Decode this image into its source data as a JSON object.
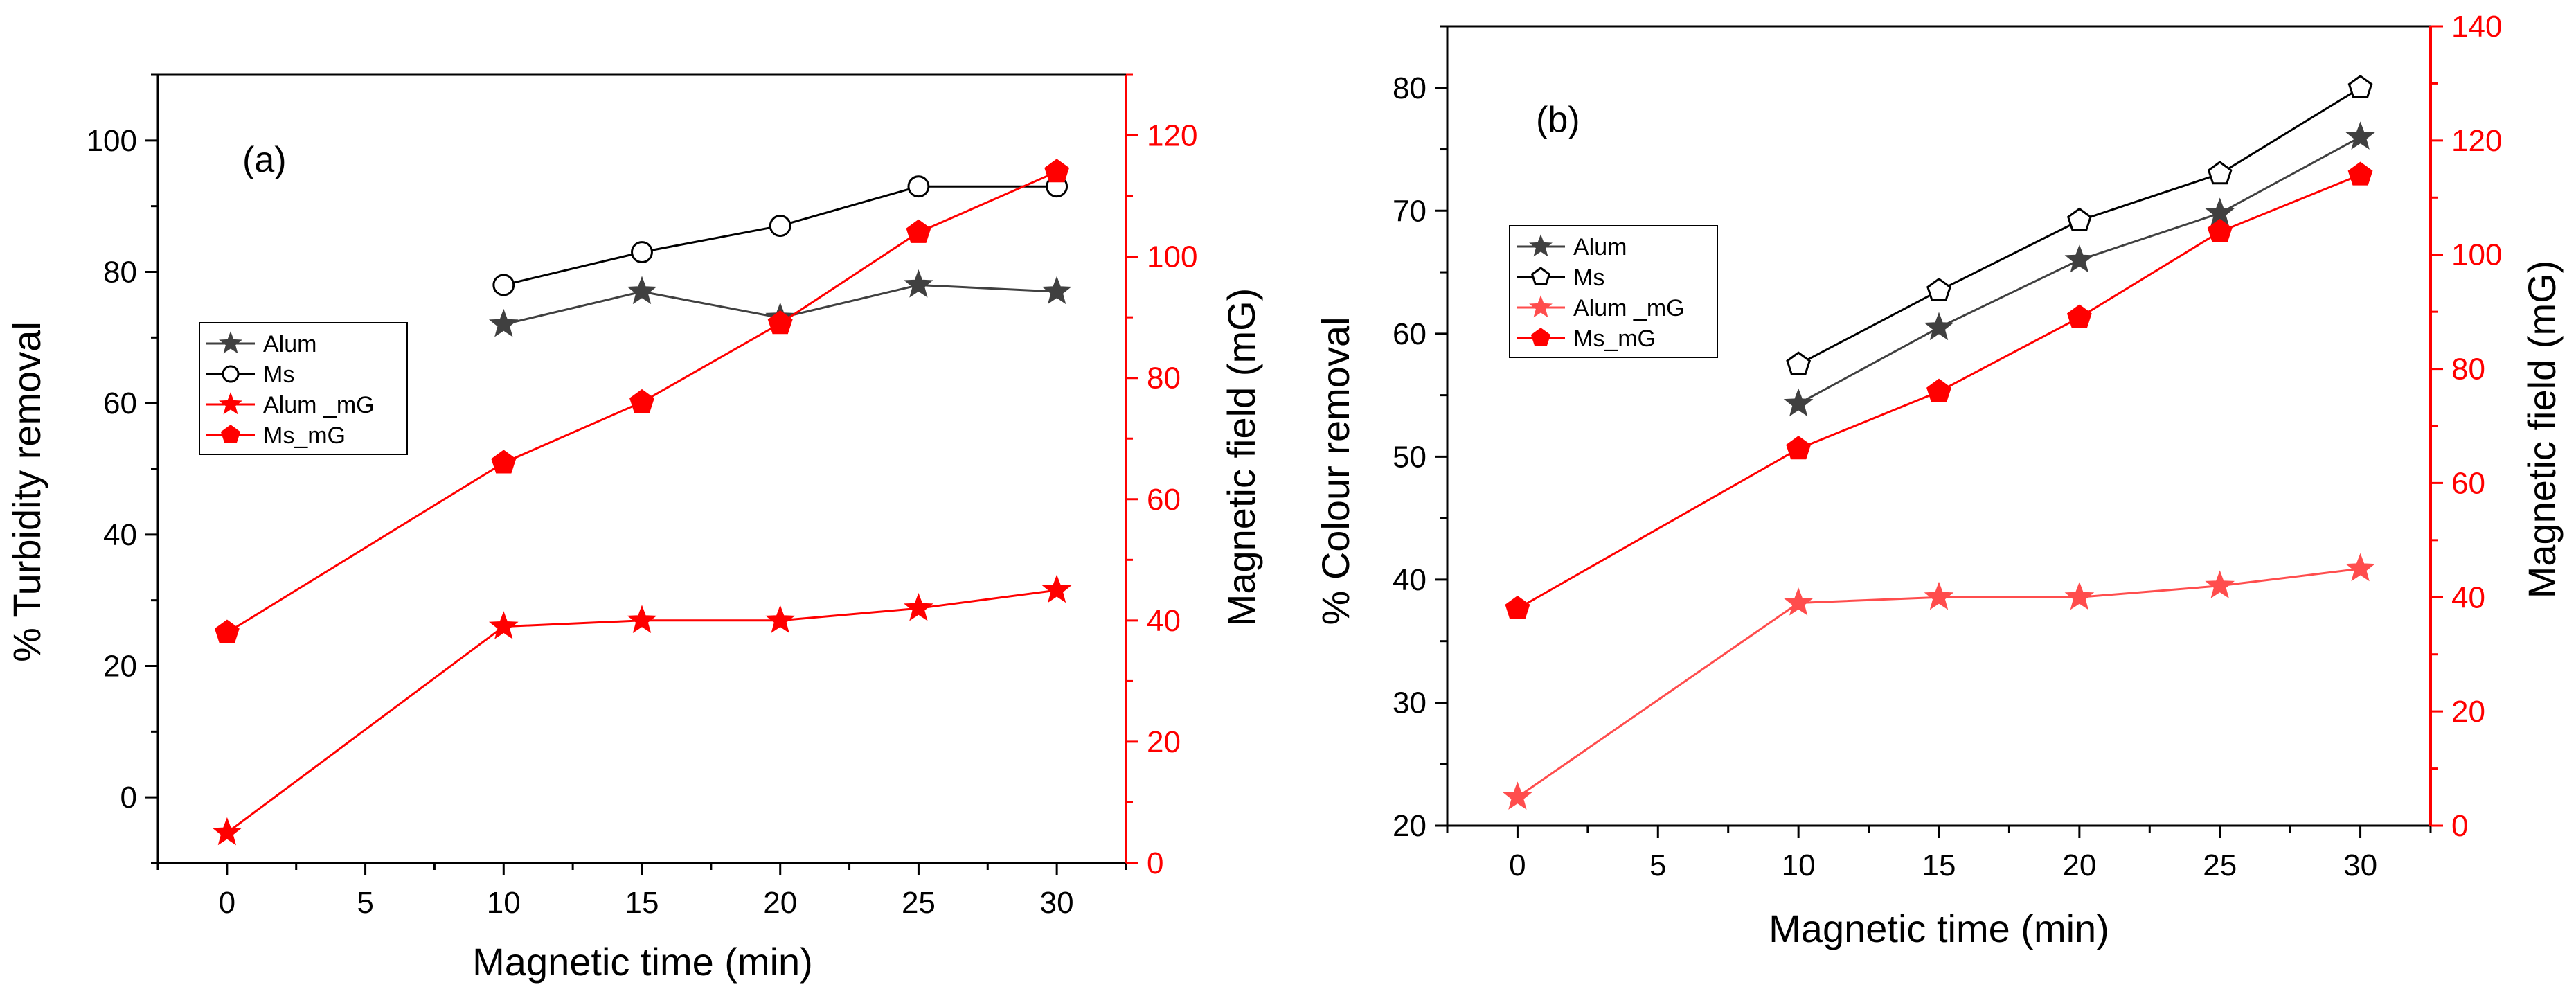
{
  "chart_data": [
    {
      "type": "line",
      "panel_label": "(a)",
      "xlabel": "Magnetic time (min)",
      "ylabel": "% Turbidity removal",
      "y2label": "Magnetic field (mG)",
      "xlim": [
        -2.5,
        32.5
      ],
      "ylim": [
        -10,
        110
      ],
      "y2lim": [
        0,
        130
      ],
      "xticks": [
        0,
        5,
        10,
        15,
        20,
        25,
        30
      ],
      "yticks": [
        0,
        20,
        40,
        60,
        80,
        100
      ],
      "y2ticks": [
        0,
        20,
        40,
        60,
        80,
        100,
        120
      ],
      "legend_position": "left-middle",
      "series": [
        {
          "name": "Alum",
          "axis": "left",
          "color": "#404040",
          "marker": "star",
          "fill": true,
          "x": [
            10,
            15,
            20,
            25,
            30
          ],
          "y": [
            72,
            77,
            73,
            78,
            77
          ]
        },
        {
          "name": "Ms",
          "axis": "left",
          "color": "#000000",
          "marker": "circle",
          "fill": false,
          "x": [
            10,
            15,
            20,
            25,
            30
          ],
          "y": [
            78,
            83,
            87,
            93,
            93
          ]
        },
        {
          "name": "Alum _mG",
          "axis": "right",
          "color": "#ff0000",
          "marker": "star",
          "fill": true,
          "x": [
            0,
            10,
            15,
            20,
            25,
            30
          ],
          "y": [
            5,
            39,
            40,
            40,
            42,
            45
          ]
        },
        {
          "name": "Ms_mG",
          "axis": "right",
          "color": "#ff0000",
          "marker": "pentagon",
          "fill": true,
          "x": [
            0,
            10,
            15,
            20,
            25,
            30
          ],
          "y": [
            38,
            66,
            76,
            89,
            104,
            114
          ]
        }
      ]
    },
    {
      "type": "line",
      "panel_label": "(b)",
      "xlabel": "Magnetic time (min)",
      "ylabel": "% Colour removal",
      "y2label": "Magnetic field (mG)",
      "xlim": [
        -2.5,
        32.5
      ],
      "ylim": [
        20,
        85
      ],
      "y2lim": [
        0,
        140
      ],
      "xticks": [
        0,
        5,
        10,
        15,
        20,
        25,
        30
      ],
      "yticks": [
        20,
        30,
        40,
        50,
        60,
        70,
        80
      ],
      "y2ticks": [
        0,
        20,
        40,
        60,
        80,
        100,
        120,
        140
      ],
      "legend_position": "left-upper",
      "series": [
        {
          "name": "Alum",
          "axis": "left",
          "color": "#404040",
          "marker": "star",
          "fill": true,
          "x": [
            10,
            15,
            20,
            25,
            30
          ],
          "y": [
            54.3,
            60.5,
            66,
            69.8,
            76
          ]
        },
        {
          "name": "Ms",
          "axis": "left",
          "color": "#000000",
          "marker": "pentagon",
          "fill": false,
          "x": [
            10,
            15,
            20,
            25,
            30
          ],
          "y": [
            57.5,
            63.5,
            69.2,
            73,
            80
          ]
        },
        {
          "name": "Alum _mG",
          "axis": "right",
          "color": "#ff4d4d",
          "marker": "star",
          "fill": true,
          "x": [
            0,
            10,
            15,
            20,
            25,
            30
          ],
          "y": [
            5,
            39,
            40,
            40,
            42,
            45
          ]
        },
        {
          "name": "Ms_mG",
          "axis": "right",
          "color": "#ff0000",
          "marker": "pentagon",
          "fill": true,
          "x": [
            0,
            10,
            15,
            20,
            25,
            30
          ],
          "y": [
            38,
            66,
            76,
            89,
            104,
            114
          ]
        }
      ]
    }
  ]
}
